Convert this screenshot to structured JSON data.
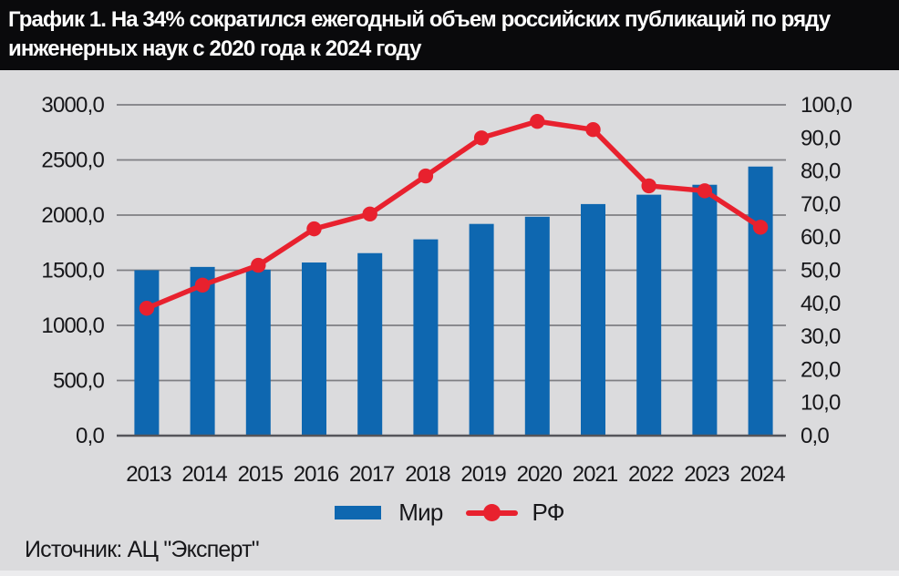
{
  "title": {
    "label": "График 1. На 34% сократился ежегодный объем российских публикаций по ряду инженерных наук с 2020 года к 2024 году",
    "lines": [
      "График 1. На 34% сократился ежегодный объем российских публикаций по ряду",
      "инженерных наук с 2020 года к 2024 году"
    ]
  },
  "source": {
    "label": "Источник: АЦ \"Эксперт\""
  },
  "legend": {
    "items": [
      {
        "label": "Мир",
        "marker": "bar-swatch",
        "color": "#0E67B0"
      },
      {
        "label": "РФ",
        "marker": "line-with-dot-swatch",
        "color": "#E8212E"
      }
    ]
  },
  "colors": {
    "bar": "#0E67B0",
    "line": "#E8212E",
    "page_background": "#DBDBDD",
    "title_background": "#0A0A0C",
    "title_text": "#FFFFFF",
    "grid": "#7F7F83",
    "axis_line": "#55555A",
    "text": "#17171A"
  },
  "chart_data": {
    "type": "bar",
    "subtype": "combo-bar-line-dual-axis",
    "title": "График 1. На 34% сократился ежегодный объем российских публикаций по ряду инженерных наук с 2020 года к 2024 году",
    "categories": [
      "2013",
      "2014",
      "2015",
      "2016",
      "2017",
      "2018",
      "2019",
      "2020",
      "2021",
      "2022",
      "2023",
      "2024"
    ],
    "series": [
      {
        "name": "Мир",
        "type": "bar",
        "axis": "left",
        "color": "#0E67B0",
        "values": [
          1500,
          1530,
          1505,
          1570,
          1655,
          1780,
          1920,
          1985,
          2100,
          2185,
          2275,
          2440
        ]
      },
      {
        "name": "РФ",
        "type": "line",
        "axis": "right",
        "color": "#E8212E",
        "values": [
          38.5,
          45.5,
          51.5,
          62.5,
          67.0,
          78.5,
          90.0,
          95.0,
          92.5,
          75.5,
          74.0,
          63.0
        ]
      }
    ],
    "left_axis": {
      "min": 0,
      "max": 3000,
      "step": 500,
      "tick_labels": [
        "0,0",
        "500,0",
        "1000,0",
        "1500,0",
        "2000,0",
        "2500,0",
        "3000,0"
      ]
    },
    "right_axis": {
      "min": 0,
      "max": 100,
      "step": 10,
      "tick_labels": [
        "0,0",
        "10,0",
        "20,0",
        "30,0",
        "40,0",
        "50,0",
        "60,0",
        "70,0",
        "80,0",
        "90,0",
        "100,0"
      ]
    },
    "grid": true,
    "legend_position": "bottom",
    "source": "Источник: АЦ \"Эксперт\""
  }
}
